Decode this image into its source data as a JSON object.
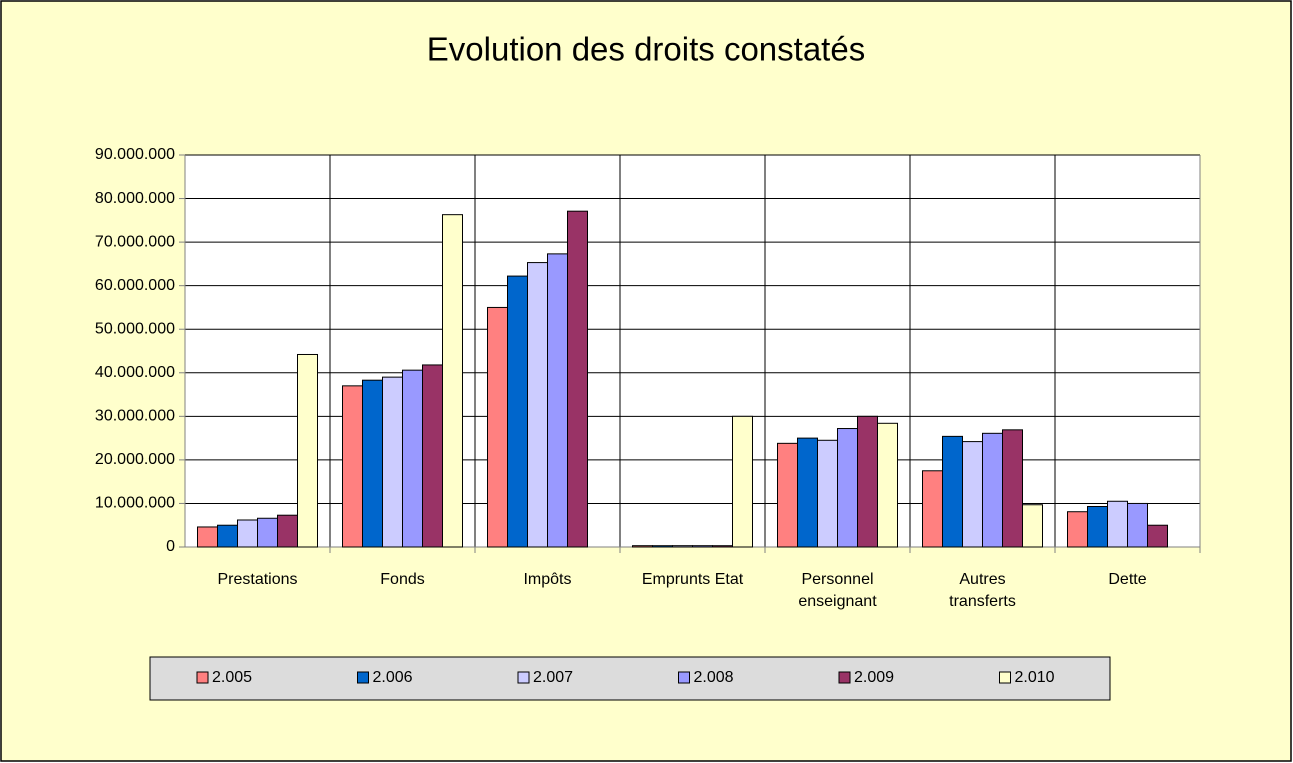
{
  "chart_data": {
    "type": "bar",
    "title": "Evolution des droits constatés",
    "categories": [
      "Prestations",
      "Fonds",
      "Impôts",
      "Emprunts Etat",
      "Personnel enseignant",
      "Autres transferts",
      "Dette"
    ],
    "series": [
      {
        "name": "2.005",
        "color": "#ff8080",
        "values": [
          4600000,
          37000000,
          55000000,
          300000,
          23800000,
          17500000,
          8100000
        ]
      },
      {
        "name": "2.006",
        "color": "#0066cc",
        "values": [
          5000000,
          38300000,
          62200000,
          300000,
          25000000,
          25400000,
          9300000
        ]
      },
      {
        "name": "2.007",
        "color": "#ccccff",
        "values": [
          6200000,
          39000000,
          65300000,
          300000,
          24500000,
          24200000,
          10500000
        ]
      },
      {
        "name": "2.008",
        "color": "#9999ff",
        "values": [
          6600000,
          40600000,
          67300000,
          300000,
          27200000,
          26100000,
          10000000
        ]
      },
      {
        "name": "2.009",
        "color": "#993366",
        "values": [
          7300000,
          41800000,
          77100000,
          300000,
          30000000,
          26900000,
          5000000
        ]
      },
      {
        "name": "2.010",
        "color": "#ffffcc",
        "values": [
          44200000,
          76300000,
          null,
          30000000,
          28400000,
          9700000,
          null
        ]
      }
    ],
    "ylim": [
      0,
      90000000
    ],
    "yticks": [
      0,
      {
        "value": 10000000,
        "label": "10.000.000"
      },
      {
        "value": 20000000,
        "label": "20.000.000"
      },
      {
        "value": 30000000,
        "label": "30.000.000"
      },
      {
        "value": 40000000,
        "label": "40.000.000"
      },
      {
        "value": 50000000,
        "label": "50.000.000"
      },
      {
        "value": 60000000,
        "label": "60.000.000"
      },
      {
        "value": 70000000,
        "label": "70.000.000"
      },
      {
        "value": 80000000,
        "label": "80.000.000"
      },
      {
        "value": 90000000,
        "label": "90.000.000"
      }
    ],
    "grid": true,
    "legend": "bottom"
  }
}
